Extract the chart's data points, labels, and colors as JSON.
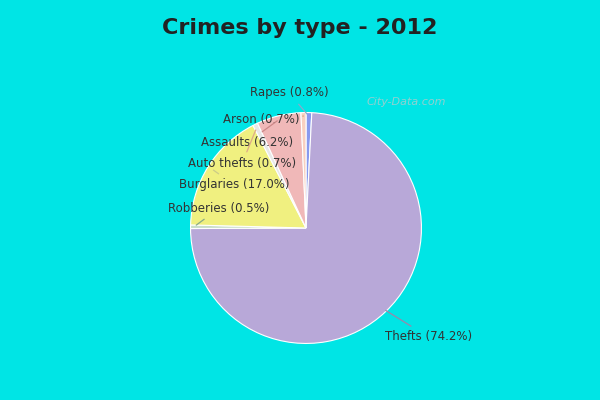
{
  "title": "Crimes by type - 2012",
  "plot_labels": [
    "Rapes",
    "Thefts",
    "Robberies",
    "Burglaries",
    "Auto thefts",
    "Assaults",
    "Arson"
  ],
  "plot_values": [
    0.8,
    74.2,
    0.5,
    17.0,
    0.7,
    6.2,
    0.7
  ],
  "plot_colors": [
    "#8899ee",
    "#b8a8d8",
    "#c8ddc8",
    "#f0f080",
    "#e8e8e8",
    "#f0b8b8",
    "#f8d0c0"
  ],
  "background_cyan": "#00e5e5",
  "background_inner": "#e8f5ee",
  "title_fontsize": 16,
  "label_fontsize": 8.5,
  "title_color": "#222222",
  "label_color": "#333333",
  "watermark": "City-Data.com",
  "annotation_labels": [
    {
      "name": "Rapes (0.8%)",
      "wedge_idx": 0,
      "ha": "left"
    },
    {
      "name": "Arson (0.7%)",
      "wedge_idx": 6,
      "ha": "left"
    },
    {
      "name": "Assaults (6.2%)",
      "wedge_idx": 5,
      "ha": "left"
    },
    {
      "name": "Auto thefts (0.7%)",
      "wedge_idx": 4,
      "ha": "left"
    },
    {
      "name": "Burglaries (17.0%)",
      "wedge_idx": 3,
      "ha": "left"
    },
    {
      "name": "Robberies (0.5%)",
      "wedge_idx": 2,
      "ha": "left"
    },
    {
      "name": "Thefts (74.2%)",
      "wedge_idx": 1,
      "ha": "left"
    }
  ]
}
